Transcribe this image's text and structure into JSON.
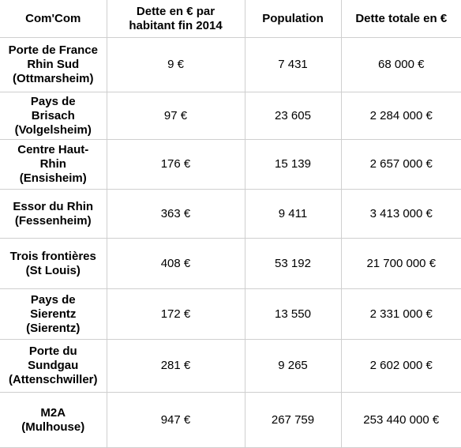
{
  "table": {
    "header": [
      [
        "Com'Com"
      ],
      [
        "Dette en € par",
        "habitant fin 2014"
      ],
      [
        "Population"
      ],
      [
        "Dette totale en €"
      ]
    ],
    "rows": [
      [
        [
          "Porte de France",
          "Rhin Sud",
          "(Ottmarsheim)"
        ],
        "9 €",
        "7 431",
        "68 000 €"
      ],
      [
        [
          "Pays de",
          "Brisach",
          "(Volgelsheim)"
        ],
        "97 €",
        "23 605",
        "2 284 000 €"
      ],
      [
        [
          "Centre Haut-",
          "Rhin",
          "(Ensisheim)"
        ],
        "176 €",
        "15 139",
        "2 657 000 €"
      ],
      [
        [
          "Essor du Rhin",
          "(Fessenheim)"
        ],
        "363 €",
        "9 411",
        "3 413 000 €"
      ],
      [
        [
          "Trois frontières",
          "(St Louis)"
        ],
        "408 €",
        "53 192",
        "21 700 000 €"
      ],
      [
        [
          "Pays de",
          "Sierentz",
          "(Sierentz)"
        ],
        "172 €",
        "13 550",
        "2 331 000 €"
      ],
      [
        [
          "Porte du",
          "Sundgau",
          "(Attenschwiller)"
        ],
        "281 €",
        "9 265",
        "2 602 000 €"
      ],
      [
        [
          "M2A",
          "(Mulhouse)"
        ],
        "947 €",
        "267 759",
        "253 440 000 €"
      ]
    ]
  }
}
